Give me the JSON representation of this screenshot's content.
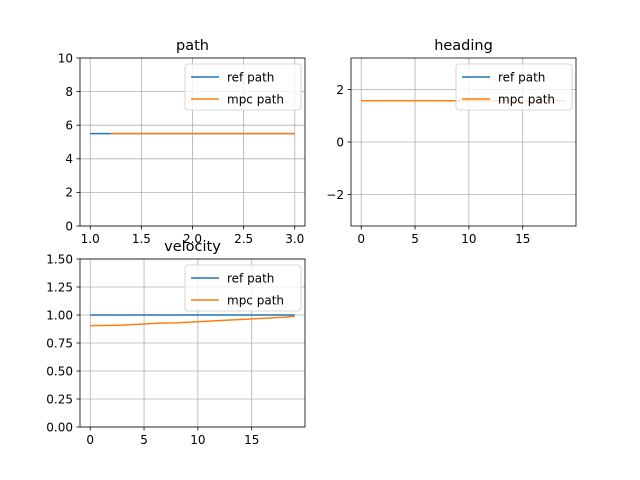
{
  "chart_data": [
    {
      "type": "line",
      "title": "path",
      "xlim": [
        0.9,
        3.1
      ],
      "ylim": [
        0,
        10
      ],
      "xticks": [
        1.0,
        1.5,
        2.0,
        2.5,
        3.0
      ],
      "xtick_labels": [
        "1.0",
        "1.5",
        "2.0",
        "2.5",
        "3.0"
      ],
      "yticks": [
        0,
        2,
        4,
        6,
        8,
        10
      ],
      "ytick_labels": [
        "0",
        "2",
        "4",
        "6",
        "8",
        "10"
      ],
      "grid": true,
      "legend_position": "top-right",
      "series": [
        {
          "name": "ref path",
          "color": "#1f77b4",
          "x": [
            1.0,
            3.0
          ],
          "y": [
            5.5,
            5.5
          ]
        },
        {
          "name": "mpc path",
          "color": "#ff7f0e",
          "x": [
            1.2,
            3.0
          ],
          "y": [
            5.5,
            5.5
          ]
        }
      ]
    },
    {
      "type": "line",
      "title": "heading",
      "xlim": [
        -0.95,
        19.95
      ],
      "ylim": [
        -3.2,
        3.2
      ],
      "xticks": [
        0,
        5,
        10,
        15
      ],
      "xtick_labels": [
        "0",
        "5",
        "10",
        "15"
      ],
      "yticks": [
        -2,
        0,
        2
      ],
      "ytick_labels": [
        "−2",
        "0",
        "2"
      ],
      "grid": true,
      "legend_position": "top-right",
      "series": [
        {
          "name": "ref path",
          "color": "#1f77b4",
          "x": [
            0,
            19
          ],
          "y": [
            1.5708,
            1.5708
          ]
        },
        {
          "name": "mpc path",
          "color": "#ff7f0e",
          "x": [
            0,
            19
          ],
          "y": [
            1.5708,
            1.5708
          ]
        }
      ]
    },
    {
      "type": "line",
      "title": "velocity",
      "xlim": [
        -0.95,
        19.95
      ],
      "ylim": [
        0,
        1.5
      ],
      "xticks": [
        0,
        5,
        10,
        15
      ],
      "xtick_labels": [
        "0",
        "5",
        "10",
        "15"
      ],
      "yticks": [
        0,
        0.25,
        0.5,
        0.75,
        1.0,
        1.25,
        1.5
      ],
      "ytick_labels": [
        "0.00",
        "0.25",
        "0.50",
        "0.75",
        "1.00",
        "1.25",
        "1.50"
      ],
      "grid": true,
      "legend_position": "top-right",
      "series": [
        {
          "name": "ref path",
          "color": "#1f77b4",
          "x": [
            0,
            1,
            2,
            3,
            4,
            5,
            6,
            7,
            8,
            9,
            10,
            11,
            12,
            13,
            14,
            15,
            16,
            17,
            18,
            19
          ],
          "y": [
            1,
            1,
            1,
            1,
            1,
            1,
            1,
            1,
            1,
            1,
            1,
            1,
            1,
            1,
            1,
            1,
            1,
            1,
            1,
            1
          ]
        },
        {
          "name": "mpc path",
          "color": "#ff7f0e",
          "x": [
            0,
            1,
            2,
            3,
            4,
            5,
            6,
            7,
            8,
            9,
            10,
            11,
            12,
            13,
            14,
            15,
            16,
            17,
            18,
            19
          ],
          "y": [
            0.905,
            0.906,
            0.907,
            0.91,
            0.915,
            0.92,
            0.925,
            0.928,
            0.93,
            0.935,
            0.94,
            0.945,
            0.95,
            0.955,
            0.96,
            0.965,
            0.97,
            0.975,
            0.98,
            0.99
          ]
        }
      ]
    }
  ]
}
